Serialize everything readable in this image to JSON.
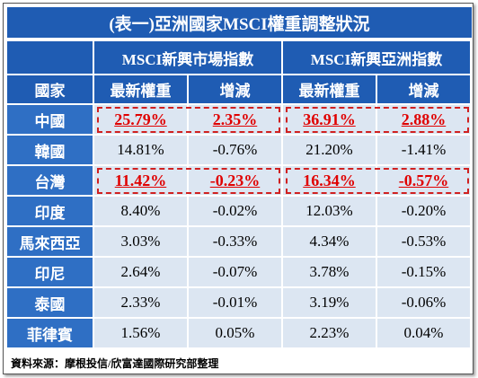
{
  "title": "(表一)亞洲國家MSCI權重調整狀況",
  "table": {
    "group_headers": [
      "MSCI新興市場指數",
      "MSCI新興亞洲指數"
    ],
    "columns": [
      "國家",
      "最新權重",
      "增減",
      "最新權重",
      "增減"
    ],
    "rows": [
      [
        "中國",
        "25.79%",
        "2.35%",
        "36.91%",
        "2.88%"
      ],
      [
        "韓國",
        "14.81%",
        "-0.76%",
        "21.20%",
        "-1.41%"
      ],
      [
        "台灣",
        "11.42%",
        "-0.23%",
        "16.34%",
        "-0.57%"
      ],
      [
        "印度",
        "8.40%",
        "-0.02%",
        "12.03%",
        "-0.20%"
      ],
      [
        "馬來西亞",
        "3.03%",
        "-0.33%",
        "4.34%",
        "-0.53%"
      ],
      [
        "印尼",
        "2.64%",
        "-0.07%",
        "3.78%",
        "-0.15%"
      ],
      [
        "泰國",
        "2.33%",
        "-0.01%",
        "3.19%",
        "-0.06%"
      ],
      [
        "菲律賓",
        "1.56%",
        "0.05%",
        "2.23%",
        "0.04%"
      ]
    ]
  },
  "source": "資料來源：摩根投信/欣富達國際研究部整理"
}
